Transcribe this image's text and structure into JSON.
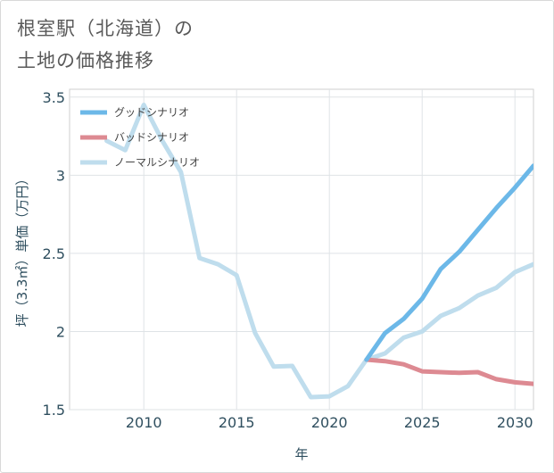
{
  "header": {
    "title_line1": "根室駅（北海道）の",
    "title_line2": "土地の価格推移"
  },
  "chart_data": {
    "type": "line",
    "xlabel": "年",
    "ylabel": "坪（3.3㎡）単価（万円）",
    "xlim": [
      2006,
      2031
    ],
    "ylim": [
      1.5,
      3.55
    ],
    "xticks": [
      2010,
      2015,
      2020,
      2025,
      2030
    ],
    "yticks": [
      1.5,
      2,
      2.5,
      3,
      3.5
    ],
    "ytick_labels": [
      "1.5",
      "2",
      "2.5",
      "3",
      "3.5"
    ],
    "grid": true,
    "legend_position": "top-left",
    "series": [
      {
        "name": "グッドシナリオ",
        "color": "#6cb8e8",
        "x": [
          2022,
          2023,
          2024,
          2025,
          2026,
          2027,
          2028,
          2029,
          2030,
          2031
        ],
        "y": [
          1.82,
          1.99,
          2.08,
          2.21,
          2.4,
          2.51,
          2.65,
          2.79,
          2.92,
          3.06
        ]
      },
      {
        "name": "バッドシナリオ",
        "color": "#dd8a92",
        "x": [
          2022,
          2023,
          2024,
          2025,
          2026,
          2027,
          2028,
          2029,
          2030,
          2031
        ],
        "y": [
          1.82,
          1.81,
          1.79,
          1.745,
          1.74,
          1.735,
          1.74,
          1.695,
          1.675,
          1.665
        ]
      },
      {
        "name": "ノーマルシナリオ",
        "color": "#bfdded",
        "x": [
          2008,
          2009,
          2010,
          2011,
          2012,
          2013,
          2014,
          2015,
          2016,
          2017,
          2018,
          2019,
          2020,
          2021,
          2022,
          2023,
          2024,
          2025,
          2026,
          2027,
          2028,
          2029,
          2030,
          2031
        ],
        "y": [
          3.22,
          3.16,
          3.45,
          3.22,
          3.02,
          2.47,
          2.43,
          2.36,
          1.99,
          1.775,
          1.78,
          1.58,
          1.585,
          1.65,
          1.82,
          1.86,
          1.96,
          2.0,
          2.1,
          2.15,
          2.23,
          2.28,
          2.38,
          2.43
        ]
      }
    ]
  }
}
